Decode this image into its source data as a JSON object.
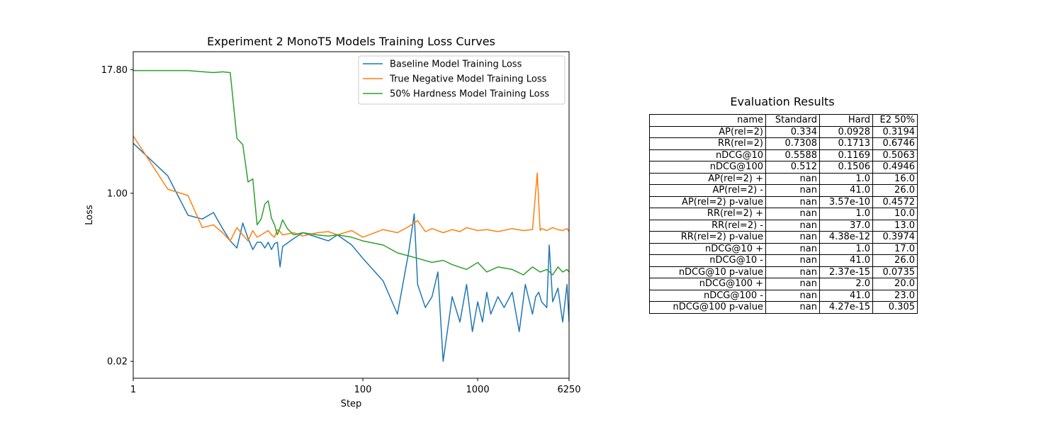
{
  "chart_data": [
    {
      "type": "line",
      "title": "Experiment 2 MonoT5 Models Training Loss Curves",
      "xlabel": "Step",
      "ylabel": "Loss",
      "x_scale": "log",
      "y_scale": "log",
      "xlim": [
        1,
        6250
      ],
      "ylim": [
        0.0135,
        27.0
      ],
      "x_ticks": [
        1,
        100,
        1000,
        6250
      ],
      "x_tick_labels": [
        "1",
        "100",
        "1000",
        "6250"
      ],
      "y_ticks": [
        0.02,
        1.0,
        17.8
      ],
      "y_tick_labels": [
        "0.02",
        "1.00",
        "17.80"
      ],
      "legend_position": "top-right",
      "series": [
        {
          "name": "Baseline Model Training Loss",
          "color": "#1f77b4",
          "x": [
            1,
            2,
            3,
            4,
            5,
            6,
            7,
            8,
            9,
            10,
            11,
            12,
            13,
            14,
            15,
            16,
            17,
            18,
            19,
            20,
            25,
            30,
            40,
            50,
            60,
            80,
            100,
            150,
            200,
            250,
            280,
            300,
            350,
            400,
            450,
            500,
            600,
            700,
            800,
            900,
            1000,
            1100,
            1200,
            1300,
            1500,
            1700,
            2000,
            2300,
            2600,
            3000,
            3200,
            3400,
            3600,
            4000,
            4200,
            4500,
            5000,
            5500,
            6000,
            6250
          ],
          "y": [
            3.2,
            1.5,
            0.6,
            0.55,
            0.64,
            0.44,
            0.33,
            0.28,
            0.5,
            0.35,
            0.27,
            0.32,
            0.32,
            0.28,
            0.32,
            0.27,
            0.31,
            0.32,
            0.18,
            0.29,
            0.35,
            0.4,
            0.36,
            0.33,
            0.38,
            0.3,
            0.22,
            0.13,
            0.06,
            0.25,
            0.62,
            0.12,
            0.07,
            0.09,
            0.16,
            0.02,
            0.09,
            0.05,
            0.12,
            0.04,
            0.08,
            0.05,
            0.1,
            0.06,
            0.09,
            0.07,
            0.1,
            0.04,
            0.12,
            0.06,
            0.09,
            0.1,
            0.08,
            0.07,
            0.3,
            0.08,
            0.11,
            0.05,
            0.12,
            0.05
          ]
        },
        {
          "name": "True Negative Model Training Loss",
          "color": "#ff7f0e",
          "x": [
            1,
            2,
            3,
            4,
            5,
            6,
            7,
            8,
            9,
            10,
            11,
            12,
            13,
            14,
            15,
            16,
            17,
            18,
            19,
            20,
            25,
            30,
            40,
            50,
            60,
            80,
            100,
            150,
            200,
            250,
            300,
            350,
            400,
            500,
            600,
            700,
            800,
            1000,
            1200,
            1500,
            2000,
            2500,
            3000,
            3300,
            3500,
            3600,
            4000,
            4500,
            5000,
            5500,
            6000,
            6250
          ],
          "y": [
            3.8,
            1.1,
            0.95,
            0.45,
            0.48,
            0.4,
            0.33,
            0.45,
            0.38,
            0.33,
            0.42,
            0.36,
            0.38,
            0.4,
            0.42,
            0.38,
            0.36,
            0.43,
            0.41,
            0.38,
            0.4,
            0.37,
            0.4,
            0.41,
            0.38,
            0.42,
            0.36,
            0.43,
            0.4,
            0.46,
            0.53,
            0.41,
            0.44,
            0.4,
            0.43,
            0.41,
            0.45,
            0.42,
            0.43,
            0.41,
            0.44,
            0.42,
            0.43,
            1.6,
            0.42,
            0.44,
            0.42,
            0.45,
            0.43,
            0.42,
            0.44,
            0.41
          ]
        },
        {
          "name": "50% Hardness Model Training Loss",
          "color": "#2ca02c",
          "x": [
            1,
            3,
            5,
            6,
            7,
            8,
            9,
            10,
            11,
            12,
            13,
            14,
            15,
            16,
            17,
            18,
            19,
            20,
            22,
            25,
            30,
            40,
            50,
            60,
            80,
            100,
            150,
            200,
            300,
            400,
            500,
            600,
            800,
            1000,
            1200,
            1500,
            2000,
            2500,
            3000,
            3500,
            4000,
            4500,
            5000,
            5500,
            6000,
            6250
          ],
          "y": [
            17.4,
            17.4,
            16.6,
            16.9,
            16.6,
            3.6,
            3.1,
            1.3,
            1.4,
            0.48,
            0.55,
            0.78,
            0.84,
            0.56,
            0.48,
            0.38,
            0.45,
            0.54,
            0.44,
            0.38,
            0.4,
            0.38,
            0.37,
            0.38,
            0.36,
            0.33,
            0.3,
            0.25,
            0.22,
            0.2,
            0.21,
            0.19,
            0.17,
            0.2,
            0.16,
            0.18,
            0.17,
            0.15,
            0.18,
            0.16,
            0.17,
            0.15,
            0.18,
            0.16,
            0.17,
            0.16
          ]
        }
      ]
    },
    {
      "type": "table",
      "title": "Evaluation Results",
      "columns": [
        "name",
        "Standard",
        "Hard",
        "E2 50%"
      ],
      "rows": [
        [
          "AP(rel=2)",
          "0.334",
          "0.0928",
          "0.3194"
        ],
        [
          "RR(rel=2)",
          "0.7308",
          "0.1713",
          "0.6746"
        ],
        [
          "nDCG@10",
          "0.5588",
          "0.1169",
          "0.5063"
        ],
        [
          "nDCG@100",
          "0.512",
          "0.1506",
          "0.4946"
        ],
        [
          "AP(rel=2) +",
          "nan",
          "1.0",
          "16.0"
        ],
        [
          "AP(rel=2) -",
          "nan",
          "41.0",
          "26.0"
        ],
        [
          "AP(rel=2) p-value",
          "nan",
          "3.57e-10",
          "0.4572"
        ],
        [
          "RR(rel=2) +",
          "nan",
          "1.0",
          "10.0"
        ],
        [
          "RR(rel=2) -",
          "nan",
          "37.0",
          "13.0"
        ],
        [
          "RR(rel=2) p-value",
          "nan",
          "4.38e-12",
          "0.3974"
        ],
        [
          "nDCG@10 +",
          "nan",
          "1.0",
          "17.0"
        ],
        [
          "nDCG@10 -",
          "nan",
          "41.0",
          "26.0"
        ],
        [
          "nDCG@10 p-value",
          "nan",
          "2.37e-15",
          "0.0735"
        ],
        [
          "nDCG@100 +",
          "nan",
          "2.0",
          "20.0"
        ],
        [
          "nDCG@100 -",
          "nan",
          "41.0",
          "23.0"
        ],
        [
          "nDCG@100 p-value",
          "nan",
          "4.27e-15",
          "0.305"
        ]
      ]
    }
  ]
}
